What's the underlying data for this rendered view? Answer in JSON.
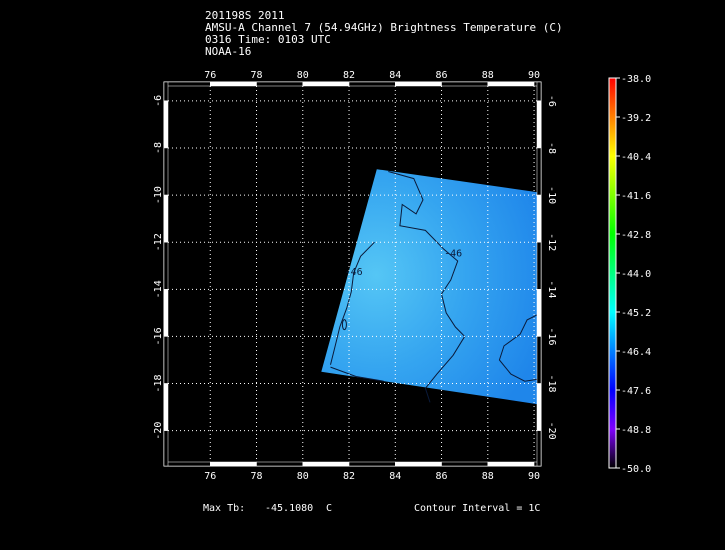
{
  "header": {
    "line1": "201198S 2011",
    "line2": "AMSU-A Channel 7 (54.94GHz) Brightness Temperature (C)",
    "line3": "0316 Time: 0103 UTC",
    "line4": "NOAA-16"
  },
  "footer": {
    "max_tb_label": "Max Tb:",
    "max_tb_value": "-45.1080",
    "max_tb_unit": "C",
    "contour_interval": "Contour Interval = 1C"
  },
  "chart_data": {
    "type": "heatmap",
    "title": "AMSU-A Channel 7 (54.94GHz) Brightness Temperature (C)",
    "xlabel": "",
    "ylabel": "",
    "xlim": [
      74,
      90.3
    ],
    "ylim": [
      -21.5,
      -5.2
    ],
    "x_ticks": [
      76,
      78,
      80,
      82,
      84,
      86,
      88,
      90
    ],
    "x_tick_labels": [
      "76",
      "78",
      "80",
      "82",
      "84",
      "86",
      "88",
      "90"
    ],
    "y_ticks": [
      -6,
      -8,
      -10,
      -12,
      -14,
      -16,
      -18,
      -20
    ],
    "y_tick_labels": [
      "-6",
      "-8",
      "-10",
      "-12",
      "-14",
      "-16",
      "-18",
      "-20"
    ],
    "grid": true,
    "swath_corners": [
      [
        83.2,
        -8.9
      ],
      [
        90.3,
        -9.9
      ],
      [
        90.3,
        -18.9
      ],
      [
        80.8,
        -17.5
      ]
    ],
    "swath_color": "#2f9bf0",
    "contour_labels": [
      {
        "text": "-46",
        "x": 86.5,
        "y": -12.6
      },
      {
        "text": "-46",
        "x": 82.2,
        "y": -13.4
      }
    ],
    "colorbar": {
      "min": -50.0,
      "max": -38.0,
      "tick_labels": [
        "-38.0",
        "-39.2",
        "-40.4",
        "-41.6",
        "-42.8",
        "-44.0",
        "-45.2",
        "-46.4",
        "-47.6",
        "-48.8",
        "-50.0"
      ],
      "colors": [
        "#ff0000",
        "#ff8000",
        "#ffff00",
        "#80ff00",
        "#00ff00",
        "#00ff80",
        "#00ffff",
        "#0080ff",
        "#0000ff",
        "#8000ff",
        "#000000"
      ]
    }
  }
}
